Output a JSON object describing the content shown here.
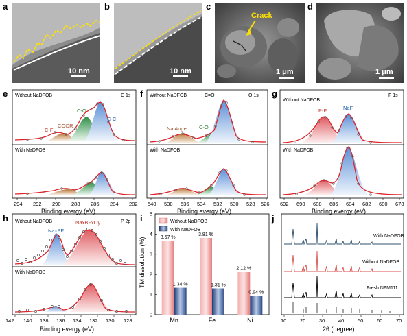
{
  "panels": {
    "a": {
      "label": "a",
      "scale": "10 nm"
    },
    "b": {
      "label": "b",
      "scale": "10 nm"
    },
    "c": {
      "label": "c",
      "scale": "1 μm",
      "annotation": "Crack"
    },
    "d": {
      "label": "d",
      "scale": "1 μm"
    },
    "e": {
      "label": "e",
      "title_top": "Without NaDFOB",
      "title_bottom": "With NaDFOB",
      "edge": "C 1s",
      "peaks": [
        "C-F",
        "COOR",
        "C-O",
        "C-C"
      ],
      "xlabel": "Binding evergy (eV)",
      "xticks": [
        "294",
        "292",
        "290",
        "288",
        "286",
        "284",
        "282"
      ]
    },
    "f": {
      "label": "f",
      "title_top": "Without NaDFOB",
      "title_bottom": "With NaDFOB",
      "edge": "O 1s",
      "peaks": [
        "Na Auger",
        "C-O",
        "C=O"
      ],
      "xlabel": "Binding evergy (eV)",
      "xticks": [
        "540",
        "538",
        "536",
        "534",
        "532",
        "530",
        "528",
        "526"
      ]
    },
    "g": {
      "label": "g",
      "title_top": "Without NaDFOB",
      "title_bottom": "With NaDFOB",
      "edge": "F 1s",
      "peaks": [
        "P-F",
        "NaF"
      ],
      "xlabel": "Binding evergy (eV)",
      "xticks": [
        "692",
        "690",
        "688",
        "686",
        "684",
        "682",
        "680",
        "678"
      ]
    },
    "h": {
      "label": "h",
      "title_top": "Without NaDFOB",
      "title_bottom": "With NaDFOB",
      "edge": "P 2p",
      "peaks": [
        "NaxPF",
        "NaxBFxOy"
      ],
      "xlabel": "Binding evergy (eV)",
      "xticks": [
        "142",
        "140",
        "138",
        "136",
        "134",
        "132",
        "130",
        "128"
      ]
    },
    "i": {
      "label": "i",
      "ylabel": "TM dissolution (%)",
      "legend_without": "Without NaDFOB",
      "legend_with": "With NaDFOB"
    },
    "j": {
      "label": "j",
      "traces": [
        "With NaDFOB",
        "Without NaDFOB",
        "Fresh NFM111"
      ],
      "xlabel": "2θ (degree)",
      "xticks": [
        "10",
        "20",
        "30",
        "40",
        "50",
        "60",
        "70"
      ]
    }
  },
  "chart_data": {
    "type": "bar",
    "categories": [
      "Mn",
      "Fe",
      "Ni"
    ],
    "series": [
      {
        "name": "Without NaDFOB",
        "values": [
          3.67,
          3.81,
          2.12
        ],
        "labels": [
          "3.67 %",
          "3.81 %",
          "2.12 %"
        ],
        "color": "#f08a8a"
      },
      {
        "name": "With NaDFOB",
        "values": [
          1.34,
          1.31,
          0.94
        ],
        "labels": [
          "1.34 %",
          "1.31 %",
          "0.94 %"
        ],
        "color": "#3e5f9a"
      }
    ],
    "ylabel": "TM dissolution (%)",
    "ylim": [
      0,
      5
    ],
    "yticks": [
      "0",
      "1",
      "2",
      "3",
      "4",
      "5"
    ]
  },
  "colors": {
    "fit_line": "#e0222a",
    "cc_fill": "#7aa7e0",
    "co_fill": "#3e9e55",
    "coor_fill": "#c9874a",
    "pf_fill": "#e8868a",
    "yellow": "#ffe100"
  }
}
